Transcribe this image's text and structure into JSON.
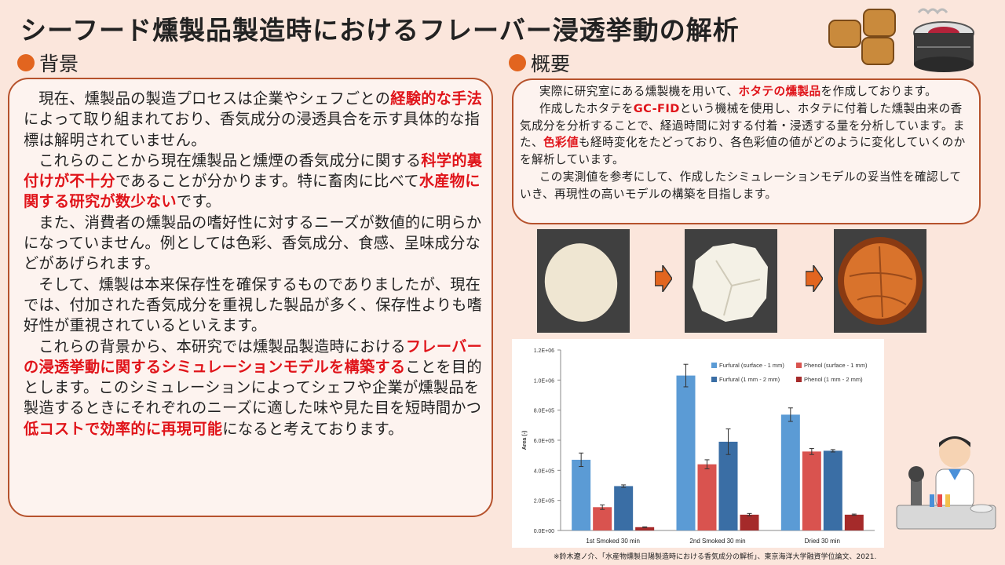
{
  "title": "シーフード燻製品製造時におけるフレーバー浸透挙動の解析",
  "background_section": {
    "heading": "背景",
    "paragraphs": [
      [
        {
          "t": "現在、燻製品の製造プロセスは企業やシェフごとの"
        },
        {
          "t": "経験的な手法",
          "em": true
        },
        {
          "t": "によって取り組まれており、香気成分の浸透具合を示す具体的な指標は解明されていません。"
        }
      ],
      [
        {
          "t": "これらのことから現在燻製品と燻煙の香気成分に関する"
        },
        {
          "t": "科学的裏付けが不十分",
          "em": true
        },
        {
          "t": "であることが分かります。特に畜肉に比べて"
        },
        {
          "t": "水産物に関する研究が数少ない",
          "em": true
        },
        {
          "t": "です。"
        }
      ],
      [
        {
          "t": "また、消費者の燻製品の嗜好性に対するニーズが数値的に明らかになっていません。例としては色彩、香気成分、食感、呈味成分などがあげられます。"
        }
      ],
      [
        {
          "t": "そして、燻製は本来保存性を確保するものでありましたが、現在では、付加された香気成分を重視した製品が多く、保存性よりも嗜好性が重視されているといえます。"
        }
      ],
      [
        {
          "t": "これらの背景から、本研究では燻製品製造時における"
        },
        {
          "t": "フレーバーの浸透挙動に関するシミュレーションモデルを構築する",
          "em": true
        },
        {
          "t": "ことを目的とします。このシミュレーションによってシェフや企業が燻製品を製造するときにそれぞれのニーズに適した味や見た目を短時間かつ"
        },
        {
          "t": "低コストで効率的に再現可能",
          "em": true
        },
        {
          "t": "になると考えております。"
        }
      ]
    ]
  },
  "overview_section": {
    "heading": "概要",
    "paragraphs": [
      [
        {
          "t": "実際に研究室にある燻製機を用いて、"
        },
        {
          "t": "ホタテの燻製品",
          "em": true
        },
        {
          "t": "を作成しております。"
        }
      ],
      [
        {
          "t": "作成したホタテを"
        },
        {
          "t": "GC-FID",
          "em": true
        },
        {
          "t": "という機械を使用し、ホタテに付着した燻製由来の香気成分を分析することで、経過時間に対する付着・浸透する量を分析しています。また、"
        },
        {
          "t": "色彩値",
          "em": true
        },
        {
          "t": "も経時変化をたどっており、各色彩値の値がどのように変化していくのかを解析しています。"
        }
      ],
      [
        {
          "t": "この実測値を参考にして、作成したシミュレーションモデルの妥当性を確認していき、再現性の高いモデルの構築を目指します。"
        }
      ]
    ]
  },
  "photos": [
    {
      "name": "raw-scallop",
      "color": "#efe6d2"
    },
    {
      "name": "steamed-scallop",
      "color": "#f4f1e6"
    },
    {
      "name": "smoked-scallop",
      "color": "#d9732c"
    }
  ],
  "chart_data": {
    "type": "bar",
    "categories": [
      "1st Smoked 30 min",
      "2nd Smoked 30 min",
      "Dried 30 min"
    ],
    "ylabel": "Area (-)",
    "ylim": [
      0,
      1200000
    ],
    "yticks": [
      "0.0E+00",
      "2.0E+05",
      "4.0E+05",
      "6.0E+05",
      "8.0E+05",
      "1.0E+06",
      "1.2E+06"
    ],
    "legend_position": "top-right",
    "series": [
      {
        "name": "Furfural (surface - 1 mm)",
        "color": "#5b9bd5",
        "values": [
          470000,
          1030000,
          770000
        ],
        "errors": [
          45000,
          75000,
          45000
        ]
      },
      {
        "name": "Phenol (surface - 1 mm)",
        "color": "#d9534f",
        "values": [
          155000,
          440000,
          525000
        ],
        "errors": [
          15000,
          30000,
          20000
        ]
      },
      {
        "name": "Furfural (1 mm - 2 mm)",
        "color": "#3a6ea5",
        "values": [
          295000,
          590000,
          530000
        ],
        "errors": [
          8000,
          85000,
          8000
        ]
      },
      {
        "name": "Phenol (1 mm - 2 mm)",
        "color": "#a52a2a",
        "values": [
          22000,
          105000,
          105000
        ],
        "errors": [
          2000,
          8000,
          4000
        ]
      }
    ]
  },
  "footnote": "※鈴木遼ノ介、「水産物燻製日陽製造時における香気成分の解析」、東京海洋大学融資学位論文、2021.",
  "colors": {
    "accent": "#e2651f",
    "emphasis": "#e0141a",
    "border": "#b6522c"
  }
}
